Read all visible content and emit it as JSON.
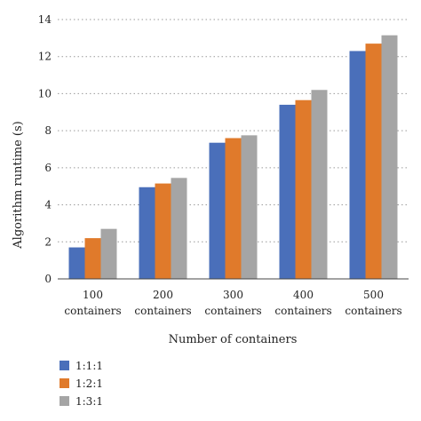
{
  "chart_data": {
    "type": "bar",
    "title": "",
    "xlabel": "Number of containers",
    "ylabel": "Algorithm runtime (s)",
    "ylim": [
      0,
      14
    ],
    "yticks": [
      0,
      2,
      4,
      6,
      8,
      10,
      12,
      14
    ],
    "grid": true,
    "legend": "bottom-left",
    "categories": [
      [
        "100",
        "containers"
      ],
      [
        "200",
        "containers"
      ],
      [
        "300",
        "containers"
      ],
      [
        "400",
        "containers"
      ],
      [
        "500",
        "containers"
      ]
    ],
    "series": [
      {
        "name": "1:1:1",
        "color": "#4a6fba",
        "values": [
          1.7,
          4.95,
          7.35,
          9.4,
          12.3
        ]
      },
      {
        "name": "1:2:1",
        "color": "#e07a2b",
        "values": [
          2.2,
          5.15,
          7.6,
          9.65,
          12.7
        ]
      },
      {
        "name": "1:3:1",
        "color": "#a5a5a5",
        "values": [
          2.7,
          5.45,
          7.75,
          10.2,
          13.15
        ]
      }
    ]
  }
}
